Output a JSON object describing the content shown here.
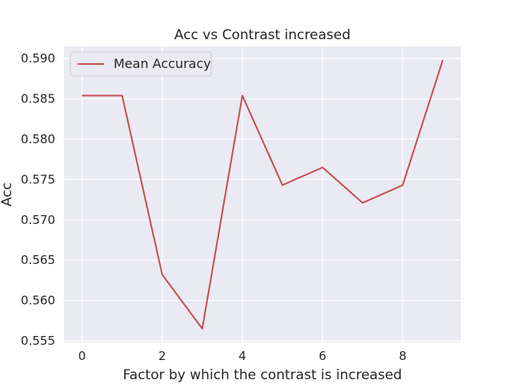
{
  "chart_data": {
    "type": "line",
    "title": "Acc vs Contrast increased",
    "xlabel": "Factor by which the contrast is increased",
    "ylabel": "Acc",
    "x": [
      0,
      1,
      2,
      3,
      4,
      5,
      6,
      7,
      8,
      9
    ],
    "series": [
      {
        "name": "Mean Accuracy",
        "color": "#c44e52",
        "values": [
          0.5854,
          0.5854,
          0.5632,
          0.5565,
          0.5854,
          0.5743,
          0.5765,
          0.5721,
          0.5743,
          0.5898
        ]
      }
    ],
    "xlim": [
      -0.45,
      9.45
    ],
    "ylim": [
      0.5548,
      0.5915
    ],
    "xticks": [
      0,
      2,
      4,
      6,
      8
    ],
    "xtick_labels": [
      "0",
      "2",
      "4",
      "6",
      "8"
    ],
    "yticks": [
      0.555,
      0.56,
      0.565,
      0.57,
      0.575,
      0.58,
      0.585,
      0.59
    ],
    "ytick_labels": [
      "0.555",
      "0.560",
      "0.565",
      "0.570",
      "0.575",
      "0.580",
      "0.585",
      "0.590"
    ],
    "grid": true,
    "legend_position": "top-left",
    "plot_background": "#eaeaf2"
  }
}
